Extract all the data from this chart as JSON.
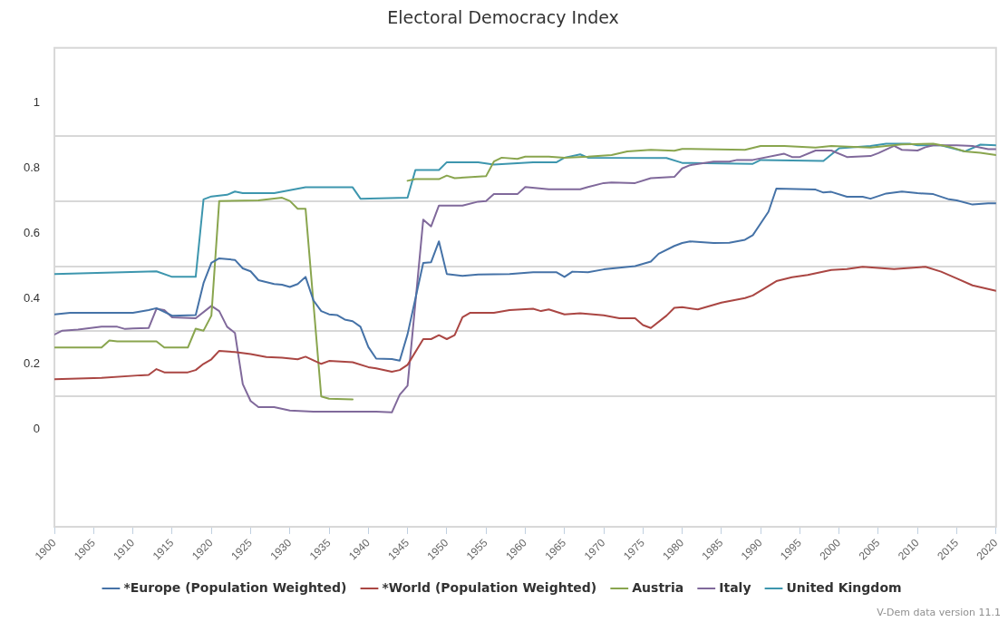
{
  "chart_data": {
    "type": "line",
    "title": "Electoral Democracy Index",
    "xlim": [
      1900,
      2020
    ],
    "xticks": [
      1900,
      1905,
      1910,
      1915,
      1920,
      1925,
      1930,
      1935,
      1940,
      1945,
      1950,
      1955,
      1960,
      1965,
      1970,
      1975,
      1980,
      1985,
      1990,
      1995,
      2000,
      2005,
      2010,
      2015,
      2020
    ],
    "ylim": [
      -0.3,
      1.17
    ],
    "yticks": [
      0,
      {
        "value": 0.1,
        "label": null
      },
      0.2,
      {
        "value": 0.3,
        "label": null
      },
      0.4,
      {
        "value": 0.5,
        "label": null
      },
      0.6,
      {
        "value": 0.7,
        "label": null
      },
      0.8,
      {
        "value": 0.9,
        "label": null
      },
      1
    ],
    "grid": "y",
    "legend": "bottom",
    "marker": "none",
    "line_style": "solid",
    "annotations": [
      "V-Dem data version 11.1"
    ],
    "series": [
      {
        "name": "*Europe (Population Weighted)",
        "color": "#4572a7",
        "x": [
          1900,
          1902,
          1906,
          1910,
          1912,
          1913,
          1915,
          1918,
          1919,
          1920,
          1921,
          1923,
          1924,
          1925,
          1926,
          1928,
          1929,
          1930,
          1931,
          1932,
          1933,
          1934,
          1935,
          1936,
          1937,
          1938,
          1939,
          1940,
          1941,
          1943,
          1944,
          1945,
          1947,
          1948,
          1949,
          1950,
          1952,
          1954,
          1958,
          1961,
          1964,
          1965,
          1966,
          1968,
          1970,
          1972,
          1974,
          1976,
          1977,
          1979,
          1980,
          1981,
          1984,
          1986,
          1988,
          1989,
          1991,
          1992,
          1997,
          1998,
          1999,
          2001,
          2003,
          2004,
          2006,
          2008,
          2010,
          2012,
          2014,
          2015,
          2017,
          2019,
          2020
        ],
        "values": [
          0.352,
          0.357,
          0.357,
          0.357,
          0.365,
          0.371,
          0.348,
          0.35,
          0.448,
          0.51,
          0.524,
          0.519,
          0.493,
          0.484,
          0.457,
          0.445,
          0.443,
          0.436,
          0.445,
          0.467,
          0.395,
          0.362,
          0.352,
          0.35,
          0.336,
          0.331,
          0.314,
          0.252,
          0.216,
          0.215,
          0.21,
          0.291,
          0.51,
          0.512,
          0.576,
          0.476,
          0.47,
          0.474,
          0.476,
          0.481,
          0.481,
          0.467,
          0.483,
          0.481,
          0.49,
          0.495,
          0.5,
          0.514,
          0.538,
          0.562,
          0.571,
          0.576,
          0.571,
          0.572,
          0.581,
          0.595,
          0.667,
          0.738,
          0.735,
          0.726,
          0.728,
          0.713,
          0.713,
          0.707,
          0.723,
          0.729,
          0.724,
          0.721,
          0.705,
          0.702,
          0.689,
          0.693,
          0.693
        ]
      },
      {
        "name": "*World (Population Weighted)",
        "color": "#aa4643",
        "x": [
          1900,
          1906,
          1911,
          1912,
          1913,
          1914,
          1917,
          1918,
          1919,
          1920,
          1921,
          1923,
          1925,
          1927,
          1929,
          1931,
          1932,
          1934,
          1935,
          1938,
          1940,
          1941,
          1943,
          1944,
          1945,
          1947,
          1948,
          1949,
          1950,
          1951,
          1952,
          1953,
          1956,
          1958,
          1961,
          1962,
          1963,
          1965,
          1967,
          1970,
          1972,
          1974,
          1975,
          1976,
          1978,
          1979,
          1980,
          1982,
          1985,
          1988,
          1989,
          1992,
          1994,
          1996,
          1999,
          2001,
          2003,
          2007,
          2011,
          2013,
          2015,
          2017,
          2020
        ],
        "values": [
          0.153,
          0.157,
          0.165,
          0.166,
          0.184,
          0.174,
          0.174,
          0.181,
          0.2,
          0.214,
          0.24,
          0.236,
          0.23,
          0.221,
          0.219,
          0.214,
          0.222,
          0.2,
          0.209,
          0.205,
          0.19,
          0.186,
          0.176,
          0.181,
          0.197,
          0.276,
          0.276,
          0.288,
          0.276,
          0.288,
          0.343,
          0.357,
          0.357,
          0.365,
          0.369,
          0.362,
          0.367,
          0.352,
          0.355,
          0.349,
          0.34,
          0.34,
          0.319,
          0.31,
          0.348,
          0.372,
          0.374,
          0.367,
          0.388,
          0.402,
          0.41,
          0.454,
          0.466,
          0.473,
          0.488,
          0.491,
          0.498,
          0.491,
          0.498,
          0.483,
          0.462,
          0.441,
          0.424
        ]
      },
      {
        "name": "Austria",
        "color": "#89a54e",
        "x": [
          1900,
          1906,
          1907,
          1908,
          1913,
          1914,
          1917,
          1918,
          1919,
          1920,
          1921,
          1926,
          1929,
          1930,
          1931,
          1932,
          1934,
          1935,
          1938,
          1939,
          1945,
          1946,
          1949,
          1950,
          1951,
          1955,
          1956,
          1957,
          1959,
          1960,
          1963,
          1965,
          1968,
          1971,
          1973,
          1976,
          1979,
          1980,
          1988,
          1990,
          1993,
          1997,
          1999,
          2004,
          2008,
          2012,
          2014,
          2016,
          2018,
          2020
        ],
        "values": [
          0.25,
          0.25,
          0.272,
          0.269,
          0.269,
          0.25,
          0.25,
          0.308,
          0.302,
          0.348,
          0.7,
          0.702,
          0.71,
          0.7,
          0.676,
          0.676,
          0.1,
          0.093,
          0.091,
          null,
          0.762,
          0.767,
          0.767,
          0.778,
          0.77,
          0.776,
          0.821,
          0.833,
          0.829,
          0.836,
          0.836,
          0.833,
          0.836,
          0.841,
          0.852,
          0.857,
          0.854,
          0.86,
          0.857,
          0.869,
          0.869,
          0.864,
          0.869,
          0.864,
          0.874,
          0.876,
          0.867,
          0.852,
          0.848,
          0.841
        ]
      },
      {
        "name": "Italy",
        "color": "#80699b",
        "x": [
          1900,
          1901,
          1903,
          1906,
          1908,
          1909,
          1910,
          1912,
          1913,
          1914,
          1915,
          1918,
          1920,
          1921,
          1922,
          1923,
          1924,
          1925,
          1926,
          1928,
          1930,
          1933,
          1941,
          1943,
          1944,
          1945,
          1947,
          1948,
          1949,
          1952,
          1954,
          1955,
          1956,
          1959,
          1960,
          1963,
          1967,
          1968,
          1970,
          1971,
          1974,
          1976,
          1979,
          1980,
          1981,
          1984,
          1986,
          1987,
          1989,
          1993,
          1994,
          1995,
          1997,
          1999,
          2001,
          2004,
          2005,
          2007,
          2008,
          2010,
          2011,
          2012,
          2015,
          2017,
          2019,
          2020
        ],
        "values": [
          0.29,
          0.302,
          0.305,
          0.314,
          0.314,
          0.307,
          0.309,
          0.31,
          0.369,
          0.365,
          0.343,
          0.34,
          0.378,
          0.362,
          0.314,
          0.295,
          0.138,
          0.086,
          0.067,
          0.067,
          0.057,
          0.053,
          0.053,
          0.051,
          0.105,
          0.133,
          0.643,
          0.622,
          0.686,
          0.686,
          0.698,
          0.7,
          0.721,
          0.721,
          0.743,
          0.736,
          0.736,
          0.743,
          0.755,
          0.757,
          0.755,
          0.77,
          0.774,
          0.8,
          0.81,
          0.821,
          0.821,
          0.826,
          0.826,
          0.845,
          0.835,
          0.835,
          0.855,
          0.855,
          0.835,
          0.838,
          0.847,
          0.869,
          0.857,
          0.855,
          0.865,
          0.871,
          0.871,
          0.869,
          0.859,
          0.859
        ]
      },
      {
        "name": "United Kingdom",
        "color": "#3d96ae",
        "x": [
          1900,
          1913,
          1915,
          1918,
          1919,
          1920,
          1922,
          1923,
          1924,
          1928,
          1930,
          1932,
          1938,
          1939,
          1945,
          1946,
          1949,
          1950,
          1954,
          1956,
          1961,
          1964,
          1965,
          1967,
          1968,
          1978,
          1980,
          1989,
          1990,
          1998,
          2000,
          2004,
          2006,
          2009,
          2010,
          2013,
          2016,
          2018,
          2020
        ],
        "values": [
          0.476,
          0.484,
          0.467,
          0.467,
          0.705,
          0.714,
          0.719,
          0.729,
          0.724,
          0.724,
          0.733,
          0.742,
          0.742,
          0.707,
          0.71,
          0.795,
          0.795,
          0.819,
          0.819,
          0.812,
          0.819,
          0.819,
          0.833,
          0.843,
          0.833,
          0.832,
          0.817,
          0.814,
          0.826,
          0.823,
          0.862,
          0.869,
          0.876,
          0.876,
          0.871,
          0.871,
          0.852,
          0.873,
          0.871
        ]
      }
    ]
  }
}
